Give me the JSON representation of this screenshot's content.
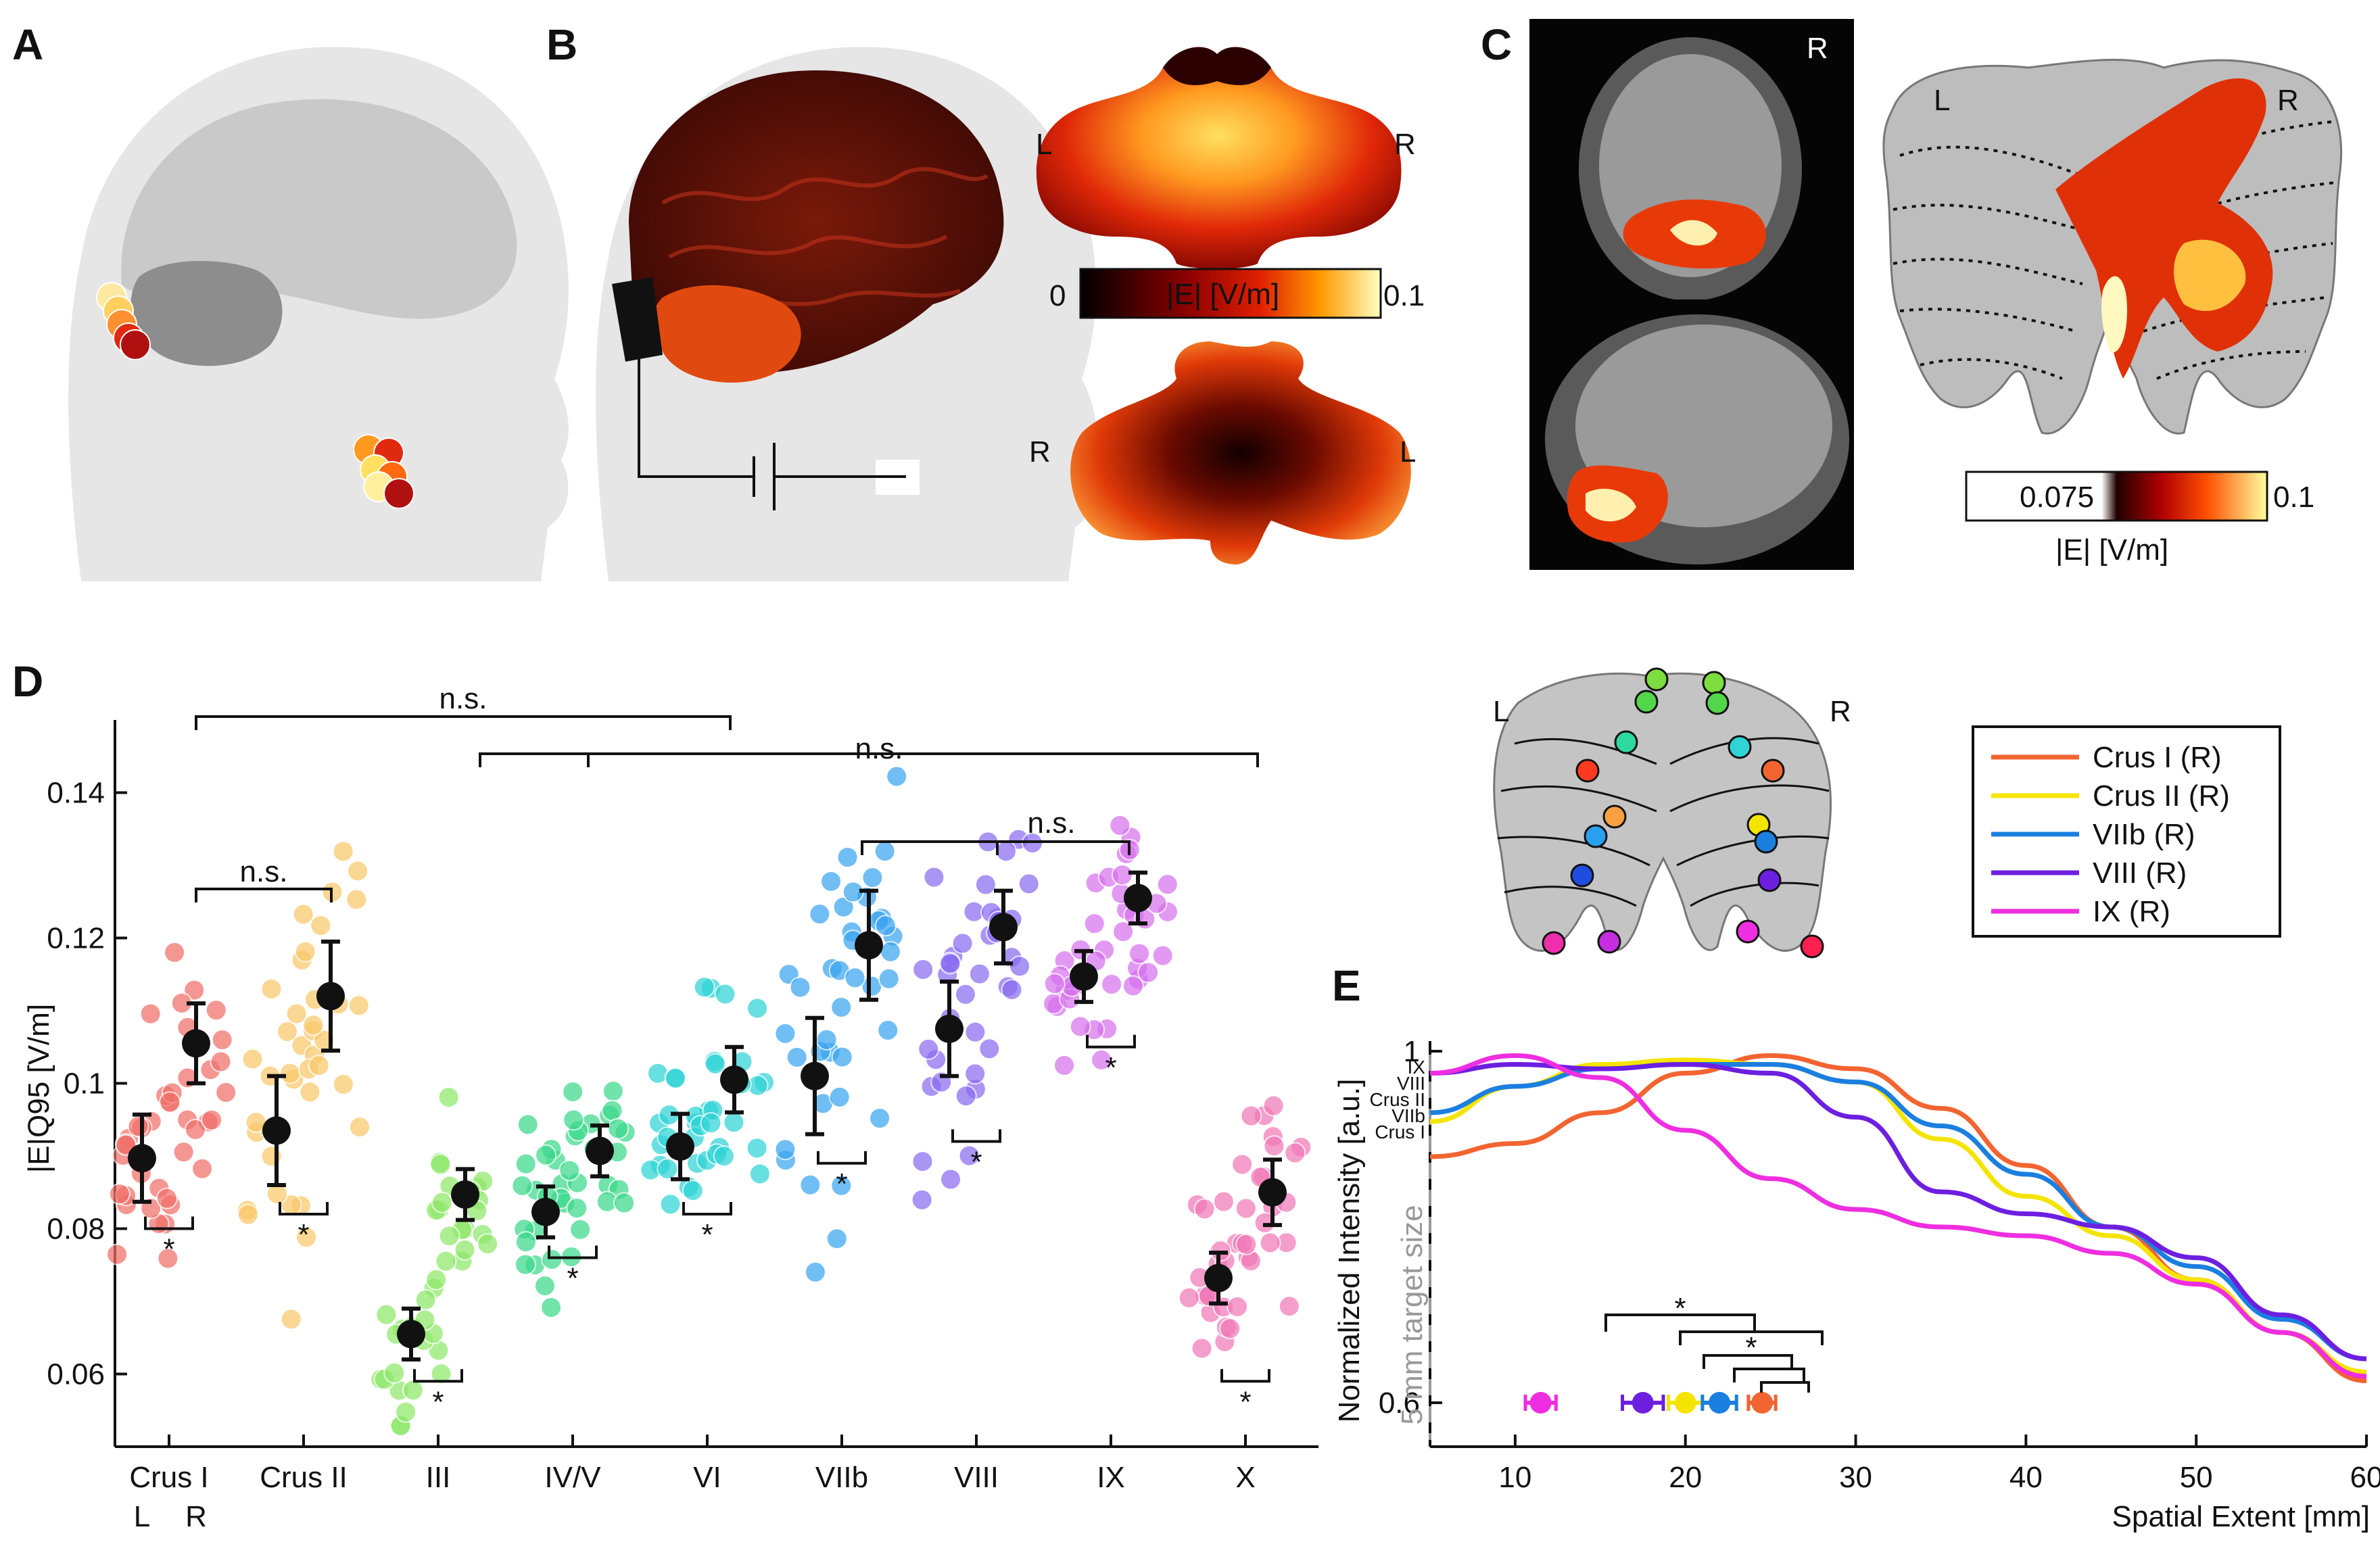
{
  "panel_labels": [
    "A",
    "B",
    "C",
    "D",
    "E"
  ],
  "panel_b": {
    "side_top_left": "L",
    "side_top_right": "R",
    "side_bottom_left": "R",
    "side_bottom_right": "L",
    "cbar_min": "0",
    "cbar_label": "|E| [V/m]",
    "cbar_max": "0.1"
  },
  "panel_c": {
    "mri_side": "R",
    "flat_left": "L",
    "flat_right": "R",
    "cbar_min": "0.075",
    "cbar_max": "0.1",
    "cbar_label": "|E| [V/m]"
  },
  "colors": {
    "crus1": "#f26430",
    "crus2": "#f5e400",
    "vi": "#1b7fe0",
    "viii": "#6d1fe0",
    "ix": "#ee2ee0"
  },
  "chart_data": [
    {
      "type": "scatter",
      "title": "",
      "ylabel": "|E|Q95 [V/m]",
      "ylim": [
        0.05,
        0.15
      ],
      "yticks": [
        "0.06",
        "0.08",
        "0.1",
        "0.12",
        "0.14"
      ],
      "categories": [
        "Crus I",
        "Crus II",
        "III",
        "IV/V",
        "VI",
        "VIIb",
        "VIII",
        "IX",
        "X"
      ],
      "hemisphere_labels": [
        "L",
        "R"
      ],
      "group_colors": [
        "#f0706a",
        "#f9c86a",
        "#8fe86a",
        "#3cd98c",
        "#2fd4d6",
        "#3ba6f0",
        "#8a6cf0",
        "#d672ee",
        "#f07ab8"
      ],
      "means": {
        "L": [
          0.0897,
          0.0935,
          0.0655,
          0.0823,
          0.0913,
          0.101,
          0.1075,
          0.1147,
          0.0732
        ],
        "R": [
          0.1055,
          0.112,
          0.0847,
          0.0907,
          0.1005,
          0.119,
          0.1215,
          0.1255,
          0.085
        ]
      },
      "errors": {
        "L": [
          0.006,
          0.0075,
          0.0035,
          0.0035,
          0.0045,
          0.008,
          0.0065,
          0.0035,
          0.0035
        ],
        "R": [
          0.0055,
          0.0075,
          0.0035,
          0.0035,
          0.0045,
          0.0075,
          0.005,
          0.0035,
          0.0045
        ]
      },
      "annotations": [
        "n.s.",
        "n.s.",
        "n.s.",
        "n.s.",
        "*",
        "*",
        "*",
        "*",
        "*",
        "*",
        "*",
        "*",
        "*"
      ]
    },
    {
      "type": "line",
      "xlabel": "Spatial Extent [mm]",
      "ylabel": "Normalized Intensity [a.u.]",
      "xlim": [
        5,
        60
      ],
      "ylim": [
        0.55,
        1.0
      ],
      "xticks": [
        "10",
        "20",
        "30",
        "40",
        "50",
        "60"
      ],
      "yticks": [
        "0.6",
        "1"
      ],
      "target_label": "5 mm target size",
      "legend": [
        "Crus I (R)",
        "Crus II (R)",
        "VIIb (R)",
        "VIII (R)",
        "IX (R)"
      ],
      "curve_end_labels": [
        "IX",
        "VIII",
        "Crus II",
        "VIIb",
        "Crus I"
      ],
      "series": [
        {
          "name": "Crus I (R)",
          "x": [
            5,
            10,
            15,
            20,
            25,
            30,
            35,
            40,
            45,
            50,
            55,
            60
          ],
          "values": [
            0.88,
            0.895,
            0.93,
            0.975,
            0.995,
            0.98,
            0.935,
            0.87,
            0.8,
            0.74,
            0.68,
            0.625
          ]
        },
        {
          "name": "Crus II (R)",
          "x": [
            5,
            10,
            15,
            20,
            25,
            30,
            35,
            40,
            45,
            50,
            55,
            60
          ],
          "values": [
            0.92,
            0.96,
            0.985,
            0.99,
            0.985,
            0.965,
            0.9,
            0.835,
            0.79,
            0.74,
            0.68,
            0.635
          ]
        },
        {
          "name": "VIIb (R)",
          "x": [
            5,
            10,
            15,
            20,
            25,
            30,
            35,
            40,
            45,
            50,
            55,
            60
          ],
          "values": [
            0.93,
            0.96,
            0.98,
            0.985,
            0.985,
            0.965,
            0.915,
            0.86,
            0.8,
            0.755,
            0.695,
            0.65
          ]
        },
        {
          "name": "VIII (R)",
          "x": [
            5,
            10,
            15,
            20,
            25,
            30,
            35,
            40,
            45,
            50,
            55,
            60
          ],
          "values": [
            0.975,
            0.985,
            0.98,
            0.985,
            0.975,
            0.925,
            0.84,
            0.815,
            0.8,
            0.765,
            0.7,
            0.65
          ]
        },
        {
          "name": "IX (R)",
          "x": [
            5,
            10,
            15,
            20,
            25,
            30,
            35,
            40,
            45,
            50,
            55,
            60
          ],
          "values": [
            0.975,
            0.995,
            0.97,
            0.91,
            0.855,
            0.82,
            0.8,
            0.79,
            0.77,
            0.735,
            0.68,
            0.63
          ]
        }
      ],
      "peak_points": [
        {
          "name": "IX (R)",
          "x": 11.5,
          "err": 0.9
        },
        {
          "name": "VIII (R)",
          "x": 17.5,
          "err": 1.2
        },
        {
          "name": "Crus II (R)",
          "x": 20.0,
          "err": 1.0
        },
        {
          "name": "VIIb (R)",
          "x": 22.0,
          "err": 1.0
        },
        {
          "name": "Crus I (R)",
          "x": 24.5,
          "err": 0.8
        }
      ],
      "significance": [
        "*",
        "*"
      ]
    }
  ]
}
